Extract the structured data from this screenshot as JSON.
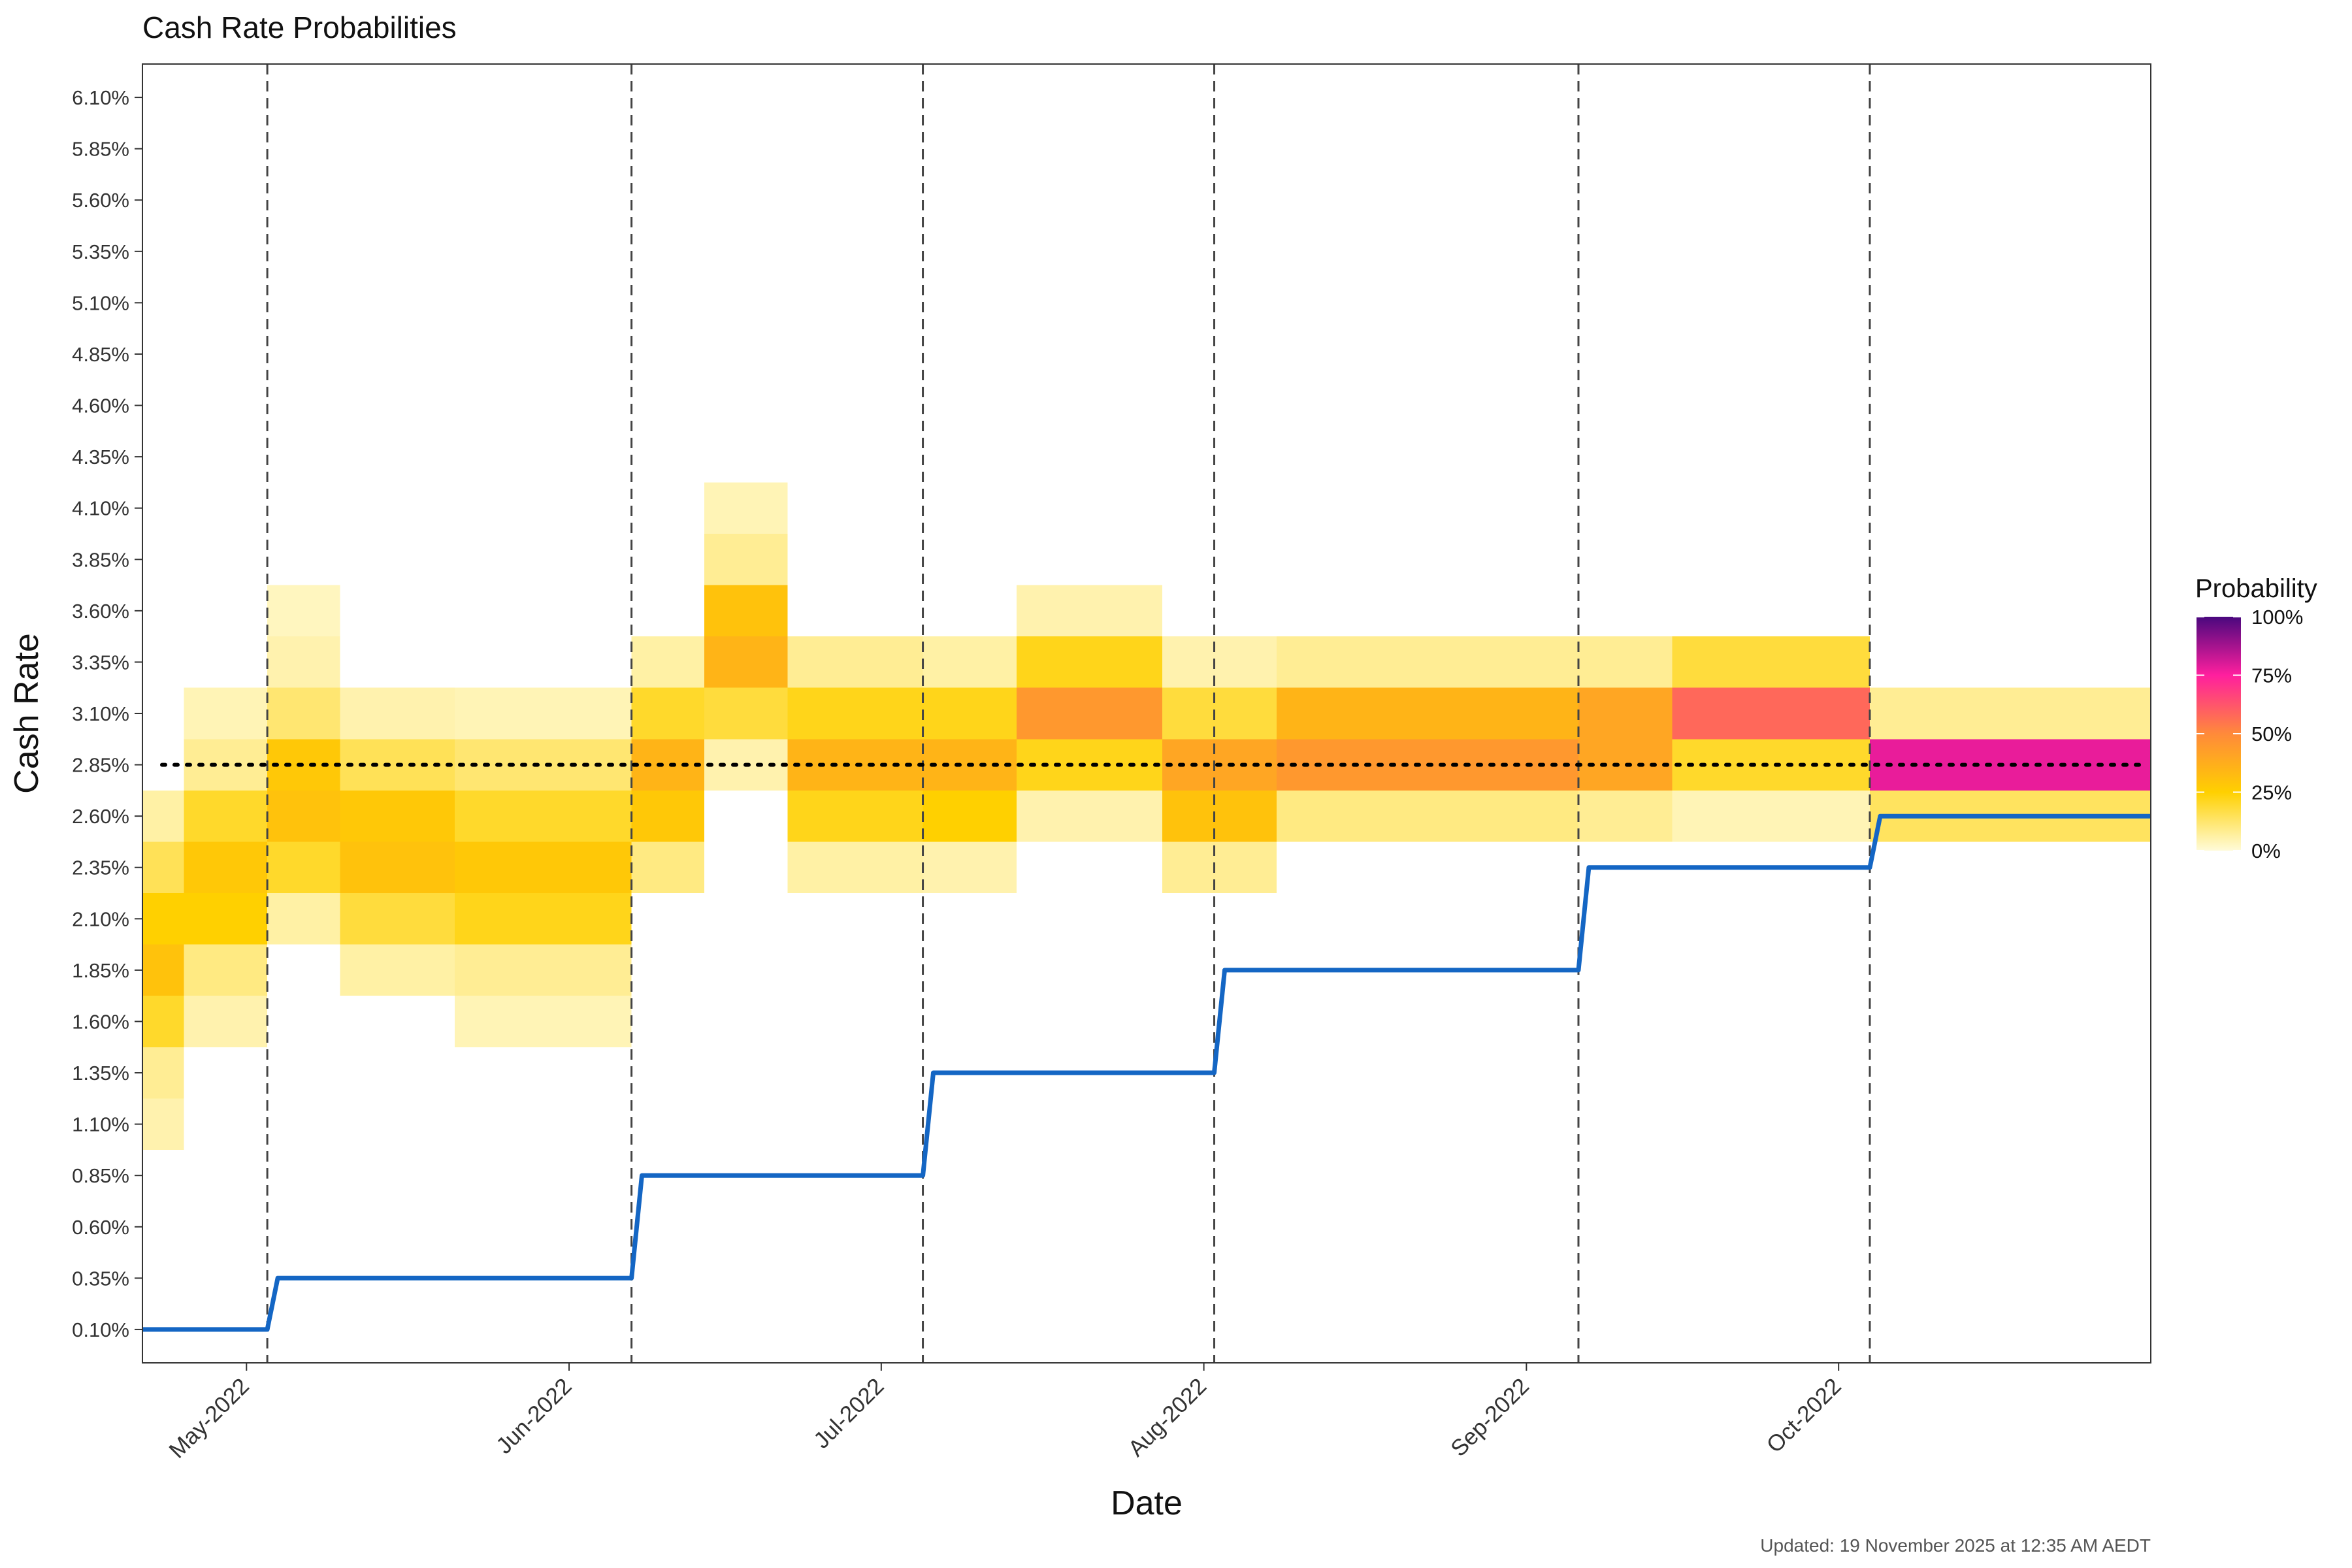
{
  "chart_data": {
    "type": "heatmap",
    "title": "Cash Rate Probabilities",
    "xlabel": "Date",
    "ylabel": "Cash Rate",
    "caption": "Updated: 19 November 2025 at 12:35 AM AEDT",
    "x_range": [
      "2022-04-21",
      "2022-10-31"
    ],
    "y_range": [
      0.1,
      6.1
    ],
    "y_ticks": [
      0.1,
      0.35,
      0.6,
      0.85,
      1.1,
      1.35,
      1.6,
      1.85,
      2.1,
      2.35,
      2.6,
      2.85,
      3.1,
      3.35,
      3.6,
      3.85,
      4.1,
      4.35,
      4.6,
      4.85,
      5.1,
      5.35,
      5.6,
      5.85,
      6.1
    ],
    "y_tick_labels": [
      "0.10%",
      "0.35%",
      "0.60%",
      "0.85%",
      "1.10%",
      "1.35%",
      "1.60%",
      "1.85%",
      "2.10%",
      "2.35%",
      "2.60%",
      "2.85%",
      "3.10%",
      "3.35%",
      "3.60%",
      "3.85%",
      "4.10%",
      "4.35%",
      "4.60%",
      "4.85%",
      "5.10%",
      "5.35%",
      "5.60%",
      "5.85%",
      "6.10%"
    ],
    "x_ticks": [
      {
        "date": "2022-05-01",
        "label": "May-2022"
      },
      {
        "date": "2022-06-01",
        "label": "Jun-2022"
      },
      {
        "date": "2022-07-01",
        "label": "Jul-2022"
      },
      {
        "date": "2022-08-01",
        "label": "Aug-2022"
      },
      {
        "date": "2022-09-01",
        "label": "Sep-2022"
      },
      {
        "date": "2022-10-01",
        "label": "Oct-2022"
      }
    ],
    "meeting_dates": [
      "2022-05-03",
      "2022-06-07",
      "2022-07-05",
      "2022-08-02",
      "2022-09-06",
      "2022-10-04"
    ],
    "reference_rate": 2.85,
    "legend": {
      "title": "Probability",
      "position": "right",
      "labels": [
        "100%",
        "75%",
        "50%",
        "25%",
        "0%"
      ],
      "colors": [
        "#fffbd9",
        "#ffd000",
        "#ff8a3a",
        "#ff1f9e",
        "#4a087e"
      ]
    },
    "series": [
      {
        "name": "Cash rate target",
        "color": "#1466c4",
        "values": [
          [
            "2022-04-21",
            0.1
          ],
          [
            "2022-05-03",
            0.1
          ],
          [
            "2022-05-04",
            0.35
          ],
          [
            "2022-06-07",
            0.35
          ],
          [
            "2022-06-08",
            0.85
          ],
          [
            "2022-07-05",
            0.85
          ],
          [
            "2022-07-06",
            1.35
          ],
          [
            "2022-08-02",
            1.35
          ],
          [
            "2022-08-03",
            1.85
          ],
          [
            "2022-09-06",
            1.85
          ],
          [
            "2022-09-07",
            2.35
          ],
          [
            "2022-10-04",
            2.35
          ],
          [
            "2022-10-05",
            2.6
          ],
          [
            "2022-10-31",
            2.6
          ]
        ]
      }
    ],
    "heatmap_segments": [
      {
        "start": "2022-04-21",
        "end": "2022-04-25",
        "probs": {
          "1.10": 0.05,
          "1.35": 0.08,
          "1.60": 0.2,
          "1.85": 0.3,
          "2.10": 0.25,
          "2.35": 0.15,
          "2.60": 0.06
        }
      },
      {
        "start": "2022-04-25",
        "end": "2022-05-03",
        "probs": {
          "1.60": 0.05,
          "1.85": 0.1,
          "2.10": 0.25,
          "2.35": 0.28,
          "2.60": 0.2,
          "2.85": 0.08,
          "3.10": 0.04
        }
      },
      {
        "start": "2022-05-03",
        "end": "2022-05-10",
        "probs": {
          "2.10": 0.06,
          "2.35": 0.2,
          "2.60": 0.3,
          "2.85": 0.28,
          "3.10": 0.12,
          "3.35": 0.05,
          "3.60": 0.03
        }
      },
      {
        "start": "2022-05-10",
        "end": "2022-05-21",
        "probs": {
          "1.85": 0.06,
          "2.10": 0.18,
          "2.35": 0.3,
          "2.60": 0.28,
          "2.85": 0.15,
          "3.10": 0.05
        }
      },
      {
        "start": "2022-05-21",
        "end": "2022-06-07",
        "probs": {
          "1.60": 0.04,
          "1.85": 0.08,
          "2.10": 0.22,
          "2.35": 0.28,
          "2.60": 0.2,
          "2.85": 0.12,
          "3.10": 0.04
        }
      },
      {
        "start": "2022-06-07",
        "end": "2022-06-14",
        "probs": {
          "2.35": 0.1,
          "2.60": 0.28,
          "2.85": 0.35,
          "3.10": 0.2,
          "3.35": 0.06
        }
      },
      {
        "start": "2022-06-14",
        "end": "2022-06-22",
        "probs": {
          "2.85": 0.05,
          "3.10": 0.18,
          "3.35": 0.35,
          "3.60": 0.3,
          "3.85": 0.08,
          "4.10": 0.04
        }
      },
      {
        "start": "2022-06-22",
        "end": "2022-07-05",
        "probs": {
          "2.35": 0.06,
          "2.60": 0.22,
          "2.85": 0.35,
          "3.10": 0.22,
          "3.35": 0.08
        }
      },
      {
        "start": "2022-07-05",
        "end": "2022-07-14",
        "probs": {
          "2.35": 0.05,
          "2.60": 0.25,
          "2.85": 0.35,
          "3.10": 0.22,
          "3.35": 0.06
        }
      },
      {
        "start": "2022-07-14",
        "end": "2022-07-28",
        "probs": {
          "2.60": 0.05,
          "2.85": 0.22,
          "3.10": 0.45,
          "3.35": 0.22,
          "3.60": 0.05
        }
      },
      {
        "start": "2022-07-28",
        "end": "2022-08-08",
        "probs": {
          "2.35": 0.08,
          "2.60": 0.3,
          "2.85": 0.4,
          "3.10": 0.18,
          "3.35": 0.05
        }
      },
      {
        "start": "2022-08-08",
        "end": "2022-09-06",
        "probs": {
          "2.60": 0.1,
          "2.85": 0.45,
          "3.10": 0.35,
          "3.35": 0.08
        }
      },
      {
        "start": "2022-09-06",
        "end": "2022-09-15",
        "probs": {
          "2.60": 0.08,
          "2.85": 0.4,
          "3.10": 0.4,
          "3.35": 0.08
        }
      },
      {
        "start": "2022-09-15",
        "end": "2022-10-04",
        "probs": {
          "2.60": 0.04,
          "2.85": 0.2,
          "3.10": 0.58,
          "3.35": 0.18
        }
      },
      {
        "start": "2022-10-04",
        "end": "2022-10-31",
        "probs": {
          "2.60": 0.14,
          "2.85": 0.78,
          "3.10": 0.08
        }
      }
    ]
  }
}
